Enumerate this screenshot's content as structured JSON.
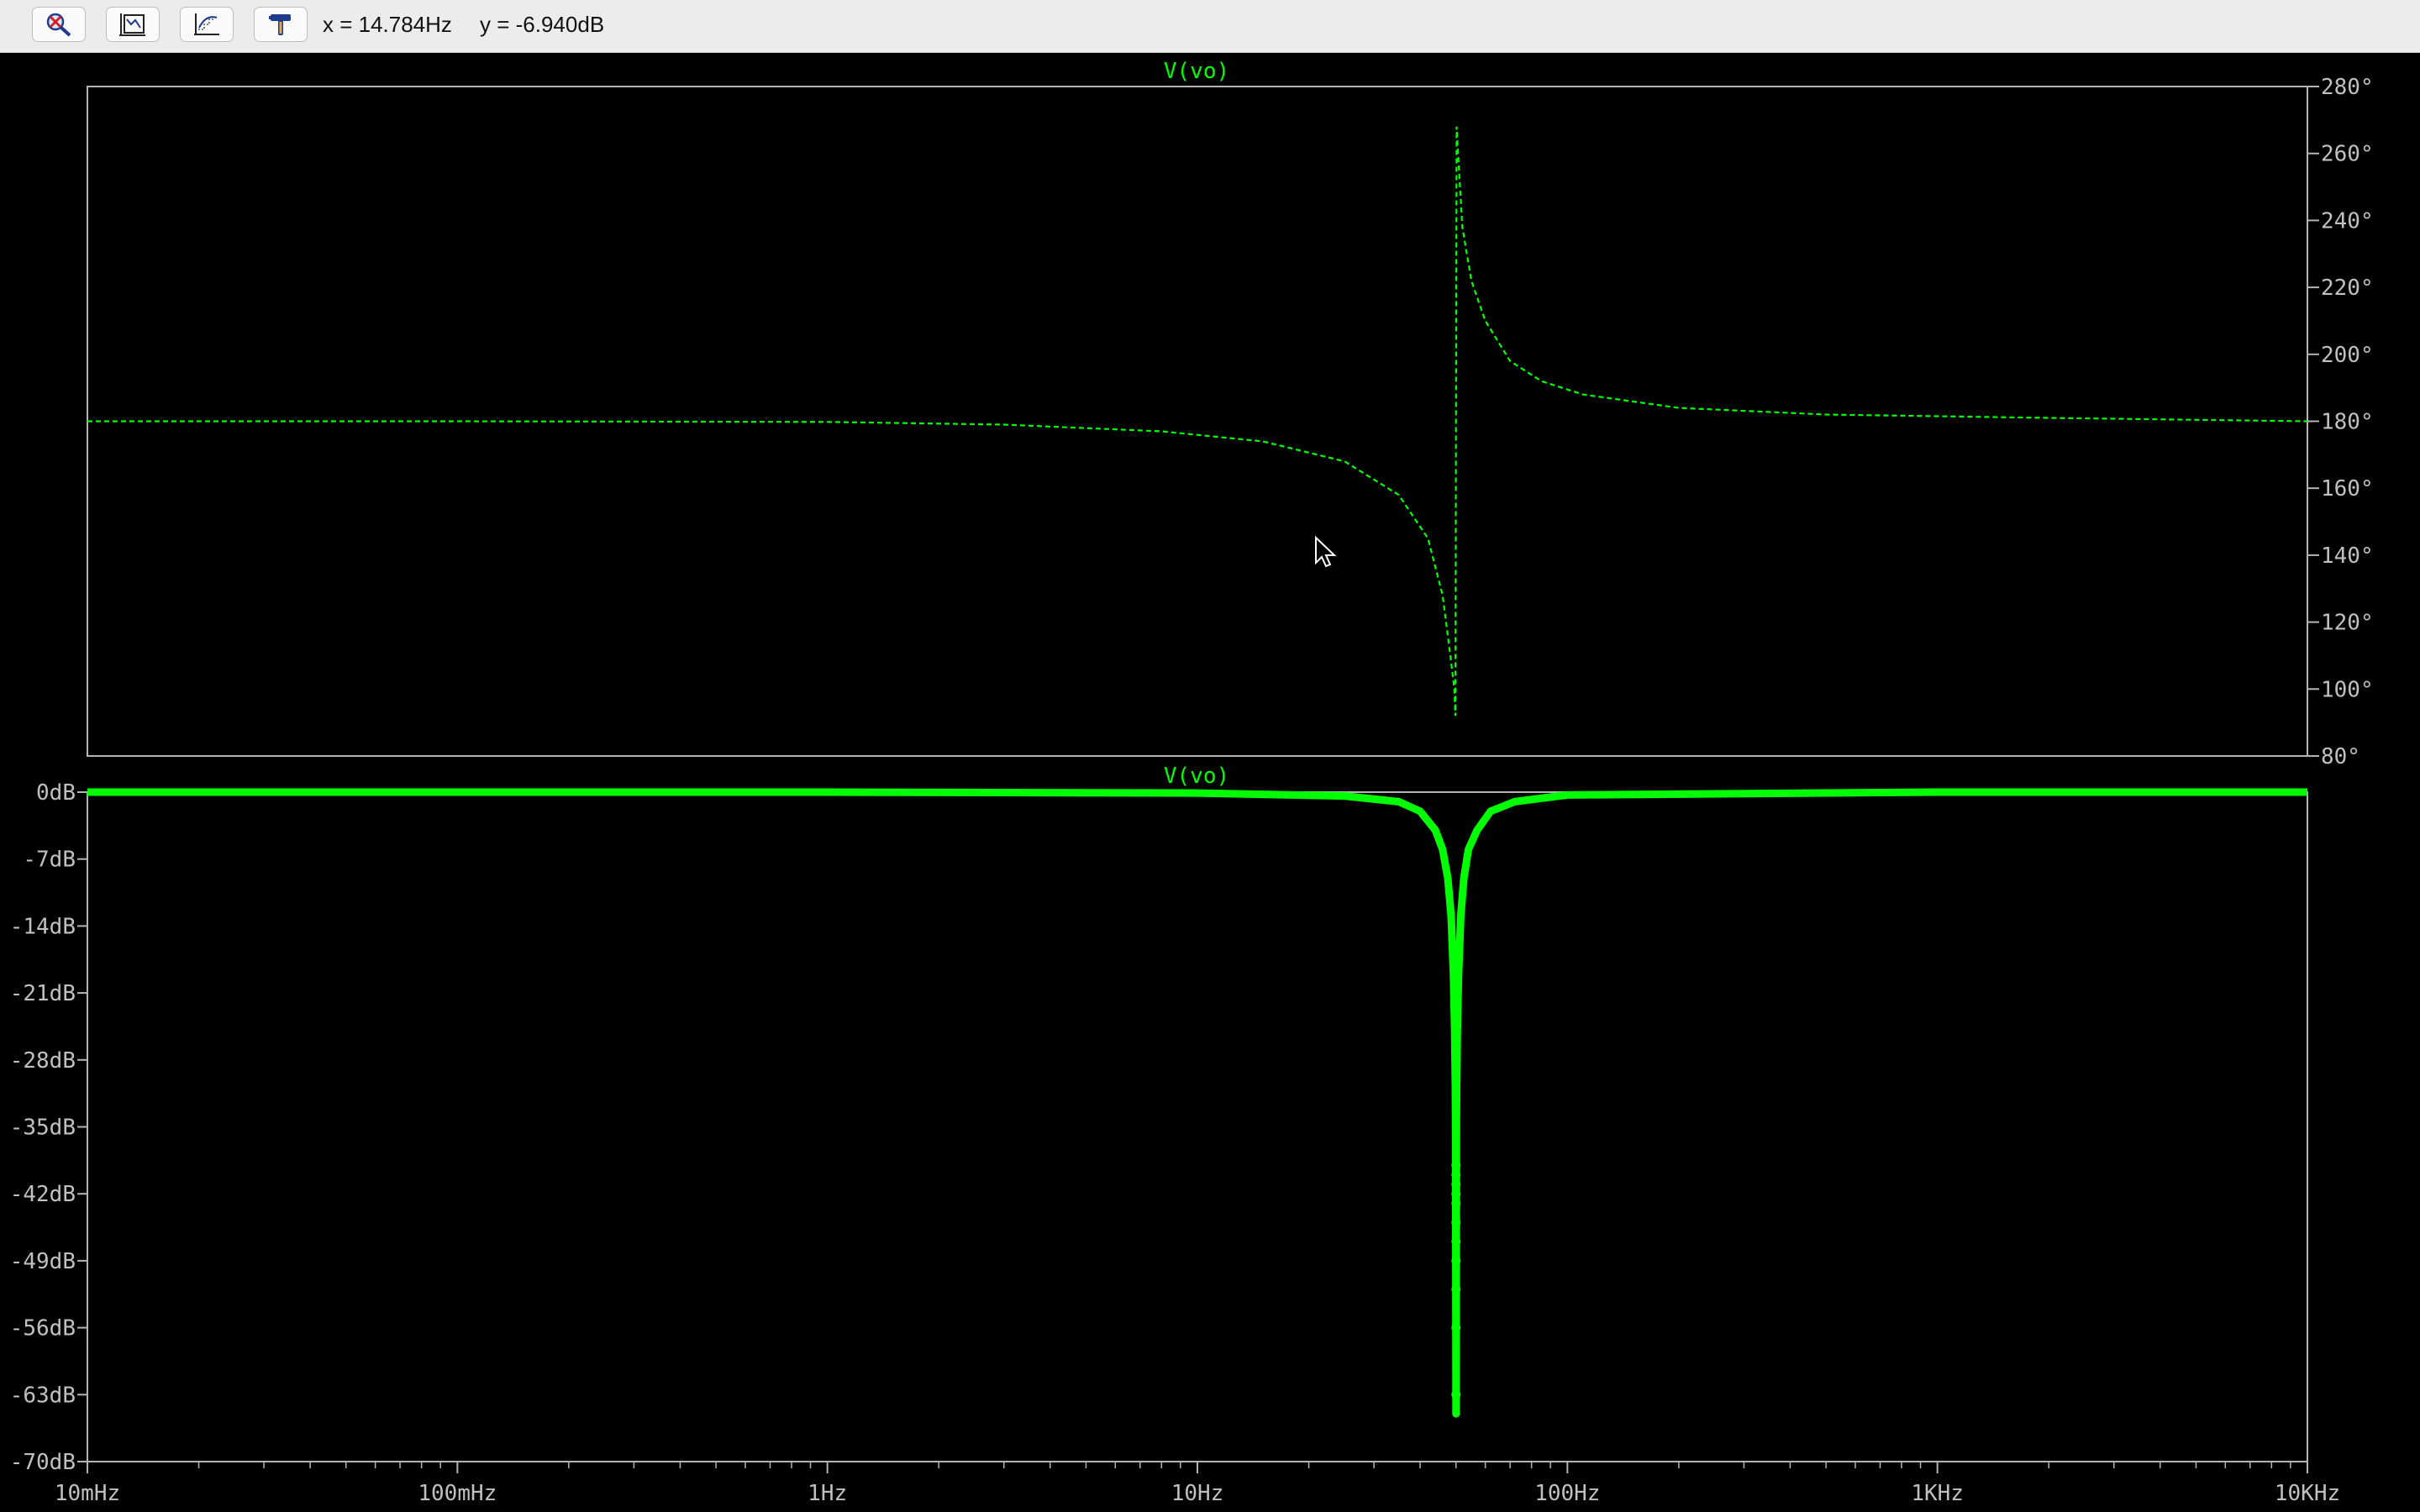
{
  "toolbar": {
    "buttons": [
      {
        "icon": "zoom-cancel-icon"
      },
      {
        "icon": "autorange-icon"
      },
      {
        "icon": "grid-icon"
      },
      {
        "icon": "hammer-icon"
      }
    ],
    "cursor_x": "x = 14.784Hz",
    "cursor_y": "y = -6.940dB"
  },
  "colors": {
    "background": "#000000",
    "trace": "#00ff00",
    "axis_text": "#c0c0c0",
    "frame": "#b4b4b4",
    "toolbar": "#ececec"
  },
  "chart_data": [
    {
      "type": "line",
      "title": "V(vo)",
      "quantity": "phase",
      "x_scale": "log",
      "xlim_hz": [
        0.01,
        10000
      ],
      "ylim": [
        80,
        280
      ],
      "y_ticks": [
        "280°",
        "260°",
        "240°",
        "220°",
        "200°",
        "180°",
        "160°",
        "140°",
        "120°",
        "100°",
        "80°"
      ],
      "y_axis_side": "right",
      "line_style": "dashed",
      "series": [
        {
          "x_hz": [
            0.01,
            0.1,
            1,
            3,
            8,
            15,
            25,
            35,
            42,
            46,
            48,
            49.5,
            49.8,
            50.2,
            50.5,
            52,
            55,
            60,
            70,
            85,
            110,
            200,
            500,
            2000,
            10000
          ],
          "y_deg": [
            180,
            180,
            179.8,
            179,
            177,
            174,
            168,
            158,
            145,
            128,
            112,
            100,
            92,
            268,
            262,
            238,
            222,
            210,
            198,
            192,
            188,
            184,
            182,
            181,
            180
          ]
        }
      ]
    },
    {
      "type": "line",
      "title": "V(vo)",
      "quantity": "magnitude",
      "x_scale": "log",
      "xlim_hz": [
        0.01,
        10000
      ],
      "ylim": [
        -70,
        0
      ],
      "y_ticks": [
        "0dB",
        "-7dB",
        "-14dB",
        "-21dB",
        "-28dB",
        "-35dB",
        "-42dB",
        "-49dB",
        "-56dB",
        "-63dB",
        "-70dB"
      ],
      "x_ticks": [
        "10mHz",
        "100mHz",
        "1Hz",
        "10Hz",
        "100Hz",
        "1KHz",
        "10KHz"
      ],
      "y_axis_side": "left",
      "line_style": "solid-with-points",
      "series": [
        {
          "x_hz": [
            0.01,
            1,
            10,
            25,
            35,
            40,
            44,
            46,
            47.5,
            48.5,
            49.2,
            49.6,
            49.8,
            49.9,
            50,
            50.1,
            50.2,
            50.4,
            50.8,
            51.5,
            52.5,
            54,
            57,
            62,
            72,
            100,
            1000,
            10000
          ],
          "y_db": [
            0,
            0,
            -0.1,
            -0.4,
            -1,
            -2,
            -4,
            -6,
            -9,
            -13,
            -19,
            -25,
            -31,
            -37,
            -65,
            -37,
            -31,
            -25,
            -19,
            -13,
            -9,
            -6,
            -4,
            -2,
            -1,
            -0.3,
            0,
            0
          ]
        }
      ],
      "marker_points_db": [
        -63,
        -56,
        -52,
        -49,
        -47,
        -45,
        -43,
        -42,
        -41,
        -40,
        -39
      ]
    }
  ]
}
